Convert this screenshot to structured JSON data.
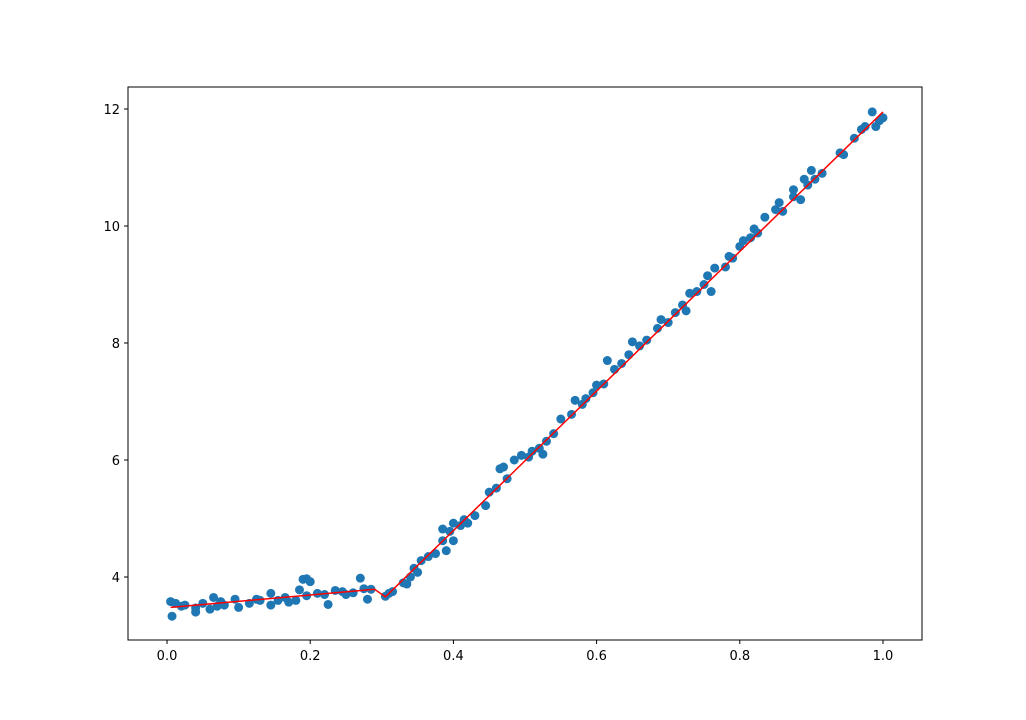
{
  "chart_data": {
    "type": "scatter",
    "xlim": [
      -0.0545,
      1.0545
    ],
    "ylim": [
      2.923,
      12.376
    ],
    "xticks": [
      {
        "value": 0,
        "label": "0.0"
      },
      {
        "value": 0.2,
        "label": "0.2"
      },
      {
        "value": 0.4,
        "label": "0.4"
      },
      {
        "value": 0.6,
        "label": "0.6"
      },
      {
        "value": 0.8,
        "label": "0.8"
      },
      {
        "value": 1,
        "label": "1.0"
      }
    ],
    "yticks": [
      4,
      6,
      8,
      10,
      12
    ],
    "series": [
      {
        "type": "scatter",
        "color": "#1f77b4",
        "x": [
          0.005,
          0.007,
          0.012,
          0.02,
          0.025,
          0.04,
          0.04,
          0.05,
          0.06,
          0.065,
          0.07,
          0.075,
          0.08,
          0.095,
          0.1,
          0.115,
          0.125,
          0.13,
          0.145,
          0.145,
          0.155,
          0.165,
          0.17,
          0.18,
          0.185,
          0.19,
          0.195,
          0.195,
          0.2,
          0.21,
          0.22,
          0.225,
          0.235,
          0.245,
          0.25,
          0.26,
          0.27,
          0.275,
          0.28,
          0.285,
          0.305,
          0.31,
          0.315,
          0.33,
          0.335,
          0.34,
          0.345,
          0.35,
          0.355,
          0.365,
          0.375,
          0.385,
          0.385,
          0.39,
          0.395,
          0.4,
          0.4,
          0.41,
          0.415,
          0.42,
          0.43,
          0.445,
          0.45,
          0.46,
          0.465,
          0.47,
          0.475,
          0.485,
          0.495,
          0.505,
          0.51,
          0.52,
          0.525,
          0.53,
          0.54,
          0.55,
          0.565,
          0.57,
          0.58,
          0.585,
          0.595,
          0.6,
          0.61,
          0.615,
          0.625,
          0.635,
          0.645,
          0.65,
          0.66,
          0.67,
          0.685,
          0.69,
          0.7,
          0.71,
          0.72,
          0.725,
          0.73,
          0.74,
          0.75,
          0.755,
          0.76,
          0.765,
          0.78,
          0.785,
          0.79,
          0.8,
          0.805,
          0.815,
          0.82,
          0.825,
          0.835,
          0.85,
          0.855,
          0.86,
          0.875,
          0.875,
          0.885,
          0.89,
          0.895,
          0.9,
          0.905,
          0.915,
          0.94,
          0.945,
          0.96,
          0.97,
          0.975,
          0.985,
          0.99,
          0.995,
          1.0
        ],
        "values": [
          3.58,
          3.33,
          3.55,
          3.5,
          3.52,
          3.4,
          3.47,
          3.55,
          3.45,
          3.65,
          3.5,
          3.58,
          3.52,
          3.62,
          3.48,
          3.55,
          3.62,
          3.6,
          3.72,
          3.52,
          3.6,
          3.65,
          3.57,
          3.6,
          3.78,
          3.96,
          3.97,
          3.68,
          3.92,
          3.72,
          3.7,
          3.53,
          3.77,
          3.75,
          3.7,
          3.73,
          3.98,
          3.8,
          3.62,
          3.79,
          3.67,
          3.72,
          3.75,
          3.9,
          3.88,
          4.0,
          4.15,
          4.08,
          4.28,
          4.35,
          4.4,
          4.82,
          4.62,
          4.45,
          4.78,
          4.62,
          4.92,
          4.88,
          4.98,
          4.92,
          5.05,
          5.22,
          5.45,
          5.52,
          5.85,
          5.88,
          5.68,
          6.0,
          6.08,
          6.05,
          6.15,
          6.2,
          6.1,
          6.32,
          6.45,
          6.7,
          6.78,
          7.02,
          6.95,
          7.05,
          7.15,
          7.28,
          7.3,
          7.7,
          7.55,
          7.65,
          7.8,
          8.02,
          7.95,
          8.05,
          8.25,
          8.4,
          8.35,
          8.52,
          8.65,
          8.55,
          8.85,
          8.88,
          9.0,
          9.15,
          8.88,
          9.28,
          9.3,
          9.48,
          9.45,
          9.65,
          9.75,
          9.8,
          9.95,
          9.88,
          10.15,
          10.28,
          10.4,
          10.25,
          10.5,
          10.62,
          10.45,
          10.8,
          10.7,
          10.95,
          10.8,
          10.9,
          11.25,
          11.22,
          11.5,
          11.65,
          11.7,
          11.95,
          11.7,
          11.8,
          11.85
        ]
      },
      {
        "type": "line",
        "color": "#ff0000",
        "x": [
          0.005,
          0.29,
          0.305,
          1.0
        ],
        "values": [
          3.48,
          3.79,
          3.66,
          11.95
        ]
      }
    ]
  }
}
